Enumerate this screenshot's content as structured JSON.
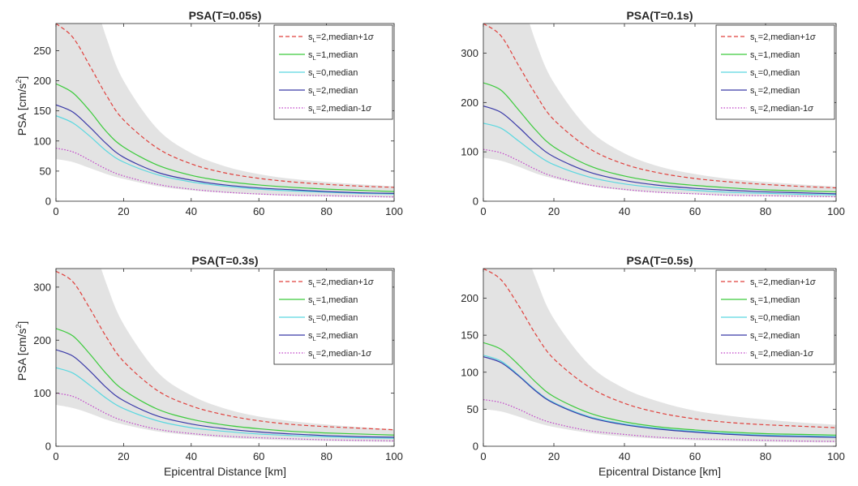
{
  "figure": {
    "xlabel": "Epicentral Distance [km]",
    "ylabel_main": "PSA [cm/s",
    "ylabel_sup": "2",
    "ylabel_close": "]"
  },
  "colors": {
    "band": "#e3e3e3",
    "median_plus_1sigma": "#e0403c",
    "sL1_median": "#3ccb3c",
    "sL0_median": "#5ad8e0",
    "sL2_median": "#3a3aa8",
    "median_minus_1sigma": "#c040c8"
  },
  "legend_entries": [
    {
      "pre": "s",
      "sub": "L",
      "post": "=2,median+1",
      "sigma": "σ"
    },
    {
      "pre": "s",
      "sub": "L",
      "post": "=1,median",
      "sigma": ""
    },
    {
      "pre": "s",
      "sub": "L",
      "post": "=0,median",
      "sigma": ""
    },
    {
      "pre": "s",
      "sub": "L",
      "post": "=2,median",
      "sigma": ""
    },
    {
      "pre": "s",
      "sub": "L",
      "post": "=2,median-1",
      "sigma": "σ"
    }
  ],
  "chart_data": [
    {
      "type": "line",
      "title": "PSA(T=0.05s)",
      "xlabel": "",
      "ylabel": "PSA [cm/s2]",
      "xlim": [
        0,
        100
      ],
      "ylim": [
        0,
        295
      ],
      "xticks": [
        0,
        20,
        40,
        60,
        80,
        100
      ],
      "yticks": [
        0,
        50,
        100,
        150,
        200,
        250
      ],
      "x": [
        0,
        5,
        10,
        15,
        20,
        30,
        40,
        50,
        60,
        70,
        80,
        90,
        100
      ],
      "band": {
        "upper": [
          480,
          440,
          360,
          270,
          200,
          120,
          80,
          58,
          45,
          37,
          32,
          28,
          25
        ],
        "lower": [
          70,
          65,
          55,
          45,
          37,
          25,
          18,
          14,
          11,
          9,
          8,
          7,
          6
        ]
      },
      "series": [
        {
          "name": "sL=2,median+1σ",
          "color": "#e0403c",
          "dash": "dashed",
          "values": [
            295,
            272,
            225,
            175,
            135,
            88,
            62,
            47,
            38,
            32,
            28,
            25,
            23
          ]
        },
        {
          "name": "sL=1,median",
          "color": "#3ccb3c",
          "dash": "solid",
          "values": [
            195,
            180,
            150,
            115,
            90,
            60,
            43,
            33,
            27,
            23,
            20,
            18,
            16
          ]
        },
        {
          "name": "sL=0,median",
          "color": "#5ad8e0",
          "dash": "solid",
          "values": [
            142,
            130,
            108,
            83,
            65,
            44,
            32,
            25,
            20,
            17,
            15,
            13,
            12
          ]
        },
        {
          "name": "sL=2,median",
          "color": "#3a3aa8",
          "dash": "solid",
          "values": [
            160,
            148,
            123,
            95,
            73,
            48,
            35,
            27,
            22,
            19,
            16,
            14,
            13
          ]
        },
        {
          "name": "sL=2,median-1σ",
          "color": "#c040c8",
          "dash": "dotted",
          "values": [
            88,
            82,
            68,
            53,
            42,
            28,
            20,
            15,
            12,
            10,
            9,
            8,
            7
          ]
        }
      ]
    },
    {
      "type": "line",
      "title": "PSA(T=0.1s)",
      "xlabel": "",
      "ylabel": "",
      "xlim": [
        0,
        100
      ],
      "ylim": [
        0,
        360
      ],
      "xticks": [
        0,
        20,
        40,
        60,
        80,
        100
      ],
      "yticks": [
        0,
        100,
        200,
        300
      ],
      "x": [
        0,
        5,
        10,
        15,
        20,
        30,
        40,
        50,
        60,
        70,
        80,
        90,
        100
      ],
      "band": {
        "upper": [
          560,
          520,
          430,
          320,
          240,
          145,
          97,
          70,
          55,
          45,
          39,
          34,
          30
        ],
        "lower": [
          88,
          82,
          70,
          56,
          46,
          31,
          22,
          17,
          14,
          11,
          10,
          9,
          8
        ]
      },
      "series": [
        {
          "name": "sL=2,median+1σ",
          "color": "#e0403c",
          "dash": "dashed",
          "values": [
            360,
            335,
            275,
            215,
            165,
            107,
            75,
            57,
            46,
            39,
            34,
            30,
            27
          ]
        },
        {
          "name": "sL=1,median",
          "color": "#3ccb3c",
          "dash": "solid",
          "values": [
            240,
            225,
            185,
            143,
            110,
            72,
            51,
            39,
            32,
            27,
            23,
            21,
            19
          ]
        },
        {
          "name": "sL=0,median",
          "color": "#5ad8e0",
          "dash": "solid",
          "values": [
            158,
            148,
            122,
            95,
            74,
            49,
            35,
            27,
            22,
            18,
            16,
            14,
            13
          ]
        },
        {
          "name": "sL=2,median",
          "color": "#3a3aa8",
          "dash": "solid",
          "values": [
            193,
            180,
            150,
            116,
            90,
            59,
            42,
            32,
            26,
            22,
            19,
            17,
            15
          ]
        },
        {
          "name": "sL=2,median-1σ",
          "color": "#c040c8",
          "dash": "dotted",
          "values": [
            105,
            98,
            82,
            64,
            50,
            33,
            24,
            18,
            15,
            12,
            11,
            10,
            9
          ]
        }
      ]
    },
    {
      "type": "line",
      "title": "PSA(T=0.3s)",
      "xlabel": "Epicentral Distance [km]",
      "ylabel": "PSA [cm/s2]",
      "xlim": [
        0,
        100
      ],
      "ylim": [
        0,
        335
      ],
      "xticks": [
        0,
        20,
        40,
        60,
        80,
        100
      ],
      "yticks": [
        0,
        100,
        200,
        300
      ],
      "x": [
        0,
        5,
        10,
        15,
        20,
        30,
        40,
        50,
        60,
        70,
        80,
        90,
        100
      ],
      "band": {
        "upper": [
          520,
          480,
          400,
          305,
          230,
          140,
          96,
          71,
          56,
          47,
          41,
          36,
          32
        ],
        "lower": [
          78,
          72,
          62,
          50,
          41,
          28,
          21,
          16,
          13,
          11,
          10,
          9,
          8
        ]
      },
      "series": [
        {
          "name": "sL=2,median+1σ",
          "color": "#e0403c",
          "dash": "dashed",
          "values": [
            330,
            310,
            260,
            205,
            160,
            105,
            76,
            59,
            48,
            41,
            37,
            34,
            31
          ]
        },
        {
          "name": "sL=1,median",
          "color": "#3ccb3c",
          "dash": "solid",
          "values": [
            222,
            208,
            174,
            136,
            106,
            70,
            51,
            40,
            33,
            28,
            25,
            23,
            21
          ]
        },
        {
          "name": "sL=0,median",
          "color": "#5ad8e0",
          "dash": "solid",
          "values": [
            148,
            138,
            115,
            90,
            71,
            48,
            35,
            28,
            23,
            20,
            18,
            16,
            15
          ]
        },
        {
          "name": "sL=2,median",
          "color": "#3a3aa8",
          "dash": "solid",
          "values": [
            182,
            170,
            142,
            110,
            86,
            57,
            42,
            33,
            27,
            23,
            20,
            18,
            17
          ]
        },
        {
          "name": "sL=2,median-1σ",
          "color": "#c040c8",
          "dash": "dotted",
          "values": [
            100,
            94,
            78,
            61,
            48,
            32,
            24,
            19,
            16,
            14,
            12,
            11,
            10
          ]
        }
      ]
    },
    {
      "type": "line",
      "title": "PSA(T=0.5s)",
      "xlabel": "Epicentral Distance [km]",
      "ylabel": "",
      "xlim": [
        0,
        100
      ],
      "ylim": [
        0,
        240
      ],
      "xticks": [
        0,
        20,
        40,
        60,
        80,
        100
      ],
      "yticks": [
        0,
        50,
        100,
        150,
        200
      ],
      "x": [
        0,
        5,
        10,
        15,
        20,
        30,
        40,
        50,
        60,
        70,
        80,
        90,
        100
      ],
      "band": {
        "upper": [
          380,
          350,
          290,
          225,
          172,
          110,
          78,
          60,
          48,
          41,
          36,
          32,
          29
        ],
        "lower": [
          50,
          47,
          40,
          32,
          26,
          18,
          13,
          10,
          8,
          7,
          6,
          5.5,
          5
        ]
      },
      "series": [
        {
          "name": "sL=2,median+1σ",
          "color": "#e0403c",
          "dash": "dashed",
          "values": [
            240,
            225,
            190,
            150,
            118,
            80,
            58,
            45,
            37,
            32,
            29,
            27,
            25
          ]
        },
        {
          "name": "sL=1,median",
          "color": "#3ccb3c",
          "dash": "solid",
          "values": [
            140,
            131,
            110,
            86,
            67,
            45,
            33,
            26,
            22,
            19,
            17,
            16,
            15
          ]
        },
        {
          "name": "sL=0,median",
          "color": "#5ad8e0",
          "dash": "solid",
          "values": [
            123,
            115,
            96,
            75,
            59,
            40,
            30,
            24,
            20,
            17,
            15,
            14,
            13
          ]
        },
        {
          "name": "sL=2,median",
          "color": "#3a3aa8",
          "dash": "solid",
          "values": [
            121,
            113,
            95,
            74,
            58,
            39,
            29,
            23,
            19,
            16,
            14,
            13,
            12
          ]
        },
        {
          "name": "sL=2,median-1σ",
          "color": "#c040c8",
          "dash": "dotted",
          "values": [
            63,
            59,
            50,
            39,
            31,
            21,
            16,
            12,
            10,
            9,
            8,
            7,
            6.5
          ]
        }
      ]
    }
  ]
}
